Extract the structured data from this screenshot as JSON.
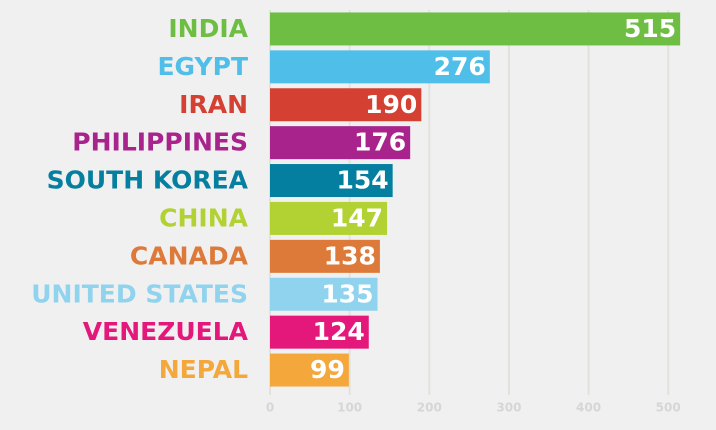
{
  "chart_data": {
    "type": "bar",
    "orientation": "horizontal",
    "categories": [
      "INDIA",
      "EGYPT",
      "IRAN",
      "PHILIPPINES",
      "SOUTH KOREA",
      "CHINA",
      "CANADA",
      "UNITED STATES",
      "VENEZUELA",
      "NEPAL"
    ],
    "values": [
      515,
      276,
      190,
      176,
      154,
      147,
      138,
      135,
      124,
      99
    ],
    "colors": [
      "#6fbe44",
      "#4fbfe9",
      "#d44032",
      "#a8238c",
      "#057fa0",
      "#b2d234",
      "#dd7a3a",
      "#8fd3ee",
      "#e4177b",
      "#f4a73a"
    ],
    "xlim": [
      0,
      560
    ],
    "xticks": [
      0,
      100,
      200,
      300,
      400,
      500
    ],
    "grid": true
  }
}
